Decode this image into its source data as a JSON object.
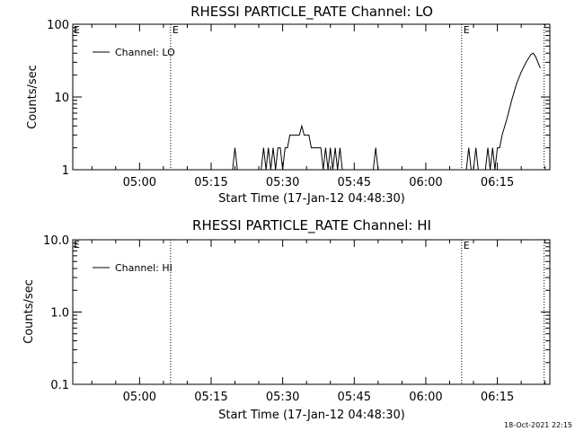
{
  "footer": {
    "timestamp": "18-Oct-2021 22:15"
  },
  "chart_data": [
    {
      "type": "line",
      "title": "RHESSI PARTICLE_RATE Channel: LO",
      "xlabel": "Start Time (17-Jan-12 04:48:30)",
      "ylabel": "Counts/sec",
      "yscale": "log",
      "xlim_minutes": [
        -14,
        86
      ],
      "ylim": [
        1,
        100
      ],
      "x_ticks": [
        {
          "label": "05:00",
          "min": 0
        },
        {
          "label": "05:15",
          "min": 15
        },
        {
          "label": "05:30",
          "min": 30
        },
        {
          "label": "05:45",
          "min": 45
        },
        {
          "label": "06:00",
          "min": 60
        },
        {
          "label": "06:15",
          "min": 75
        }
      ],
      "y_ticks": [
        {
          "label": "1",
          "v": 1
        },
        {
          "label": "10",
          "v": 10
        },
        {
          "label": "100",
          "v": 100
        }
      ],
      "legend": {
        "label": "Channel: LO",
        "placement": "top-left"
      },
      "flag_lines": [
        {
          "min": 6.5,
          "label": "E"
        },
        {
          "min": 67.5,
          "label": "E"
        },
        {
          "min": 84.8,
          "label": ""
        }
      ],
      "left_flag": "E",
      "series": [
        {
          "color": "#000000",
          "points": [
            [
              -14,
              1
            ],
            [
              19.5,
              1
            ],
            [
              20,
              2
            ],
            [
              20.5,
              1
            ],
            [
              25.5,
              1
            ],
            [
              26,
              2
            ],
            [
              26.5,
              1
            ],
            [
              27,
              2
            ],
            [
              27.5,
              1
            ],
            [
              28,
              2
            ],
            [
              28.5,
              1
            ],
            [
              29,
              2
            ],
            [
              29.5,
              2
            ],
            [
              30,
              1
            ],
            [
              30.5,
              2
            ],
            [
              31,
              2
            ],
            [
              31.5,
              3
            ],
            [
              33.5,
              3
            ],
            [
              34,
              4
            ],
            [
              34.5,
              3
            ],
            [
              35.5,
              3
            ],
            [
              36,
              2
            ],
            [
              38,
              2
            ],
            [
              38.5,
              1
            ],
            [
              39,
              2
            ],
            [
              39.5,
              1
            ],
            [
              40,
              2
            ],
            [
              40.5,
              1
            ],
            [
              41,
              2
            ],
            [
              41.5,
              1
            ],
            [
              42,
              2
            ],
            [
              42.5,
              1
            ],
            [
              49,
              1
            ],
            [
              49.5,
              2
            ],
            [
              50,
              1
            ],
            [
              68.5,
              1
            ],
            [
              69,
              2
            ],
            [
              69.5,
              1
            ],
            [
              70,
              1
            ],
            [
              70.5,
              2
            ],
            [
              71,
              1
            ],
            [
              72.5,
              1
            ],
            [
              73,
              2
            ],
            [
              73.5,
              1
            ],
            [
              74,
              2
            ],
            [
              74.5,
              1
            ],
            [
              75,
              2
            ],
            [
              75.5,
              2
            ],
            [
              76,
              3
            ],
            [
              77,
              5
            ],
            [
              78,
              9
            ],
            [
              79,
              15
            ],
            [
              80,
              22
            ],
            [
              81,
              30
            ],
            [
              82,
              38
            ],
            [
              82.5,
              40
            ],
            [
              83,
              36
            ],
            [
              83.5,
              30
            ],
            [
              84,
              25
            ]
          ]
        }
      ]
    },
    {
      "type": "line",
      "title": "RHESSI PARTICLE_RATE Channel: HI",
      "xlabel": "Start Time (17-Jan-12 04:48:30)",
      "ylabel": "Counts/sec",
      "yscale": "log",
      "xlim_minutes": [
        -14,
        86
      ],
      "ylim": [
        0.1,
        10
      ],
      "x_ticks": [
        {
          "label": "05:00",
          "min": 0
        },
        {
          "label": "05:15",
          "min": 15
        },
        {
          "label": "05:30",
          "min": 30
        },
        {
          "label": "05:45",
          "min": 45
        },
        {
          "label": "06:00",
          "min": 60
        },
        {
          "label": "06:15",
          "min": 75
        }
      ],
      "y_ticks": [
        {
          "label": "0.1",
          "v": 0.1
        },
        {
          "label": "1.0",
          "v": 1
        },
        {
          "label": "10.0",
          "v": 10
        }
      ],
      "legend": {
        "label": "Channel: HI",
        "placement": "top-left"
      },
      "flag_lines": [
        {
          "min": 6.5,
          "label": ""
        },
        {
          "min": 67.5,
          "label": "E"
        },
        {
          "min": 84.8,
          "label": ""
        }
      ],
      "left_flag": "E",
      "series": [
        {
          "color": "#000000",
          "points": []
        }
      ]
    }
  ]
}
